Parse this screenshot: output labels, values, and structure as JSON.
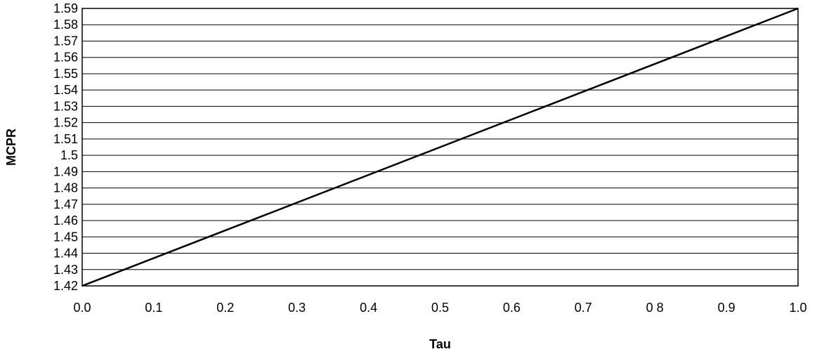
{
  "chart_data": {
    "type": "line",
    "title": "",
    "xlabel": "Tau",
    "ylabel": "MCPR",
    "xlim": [
      0.0,
      1.0
    ],
    "ylim": [
      1.42,
      1.59
    ],
    "x_ticks": [
      0.0,
      0.1,
      0.2,
      0.3,
      0.4,
      0.5,
      0.6,
      0.7,
      0.8,
      0.9,
      1.0
    ],
    "x_tick_labels": [
      "0.0",
      "0.1",
      "0.2",
      "0.3",
      "0.4",
      "0.5",
      "0.6",
      "0.7",
      "0 8",
      "0.9",
      "1.0"
    ],
    "y_ticks": [
      1.42,
      1.43,
      1.44,
      1.45,
      1.46,
      1.47,
      1.48,
      1.49,
      1.5,
      1.51,
      1.52,
      1.53,
      1.54,
      1.55,
      1.56,
      1.57,
      1.58,
      1.59
    ],
    "y_tick_labels": [
      "1.42",
      "1.43",
      "1.44",
      "1.45",
      "1.46",
      "1.47",
      "1.48",
      "1.49",
      "1.5",
      "1.51",
      "1.52",
      "1.53",
      "1.54",
      "1.55",
      "1.56",
      "1.57",
      "1.58",
      "1.59"
    ],
    "grid": "horizontal",
    "legend": "none",
    "series": [
      {
        "x": [
          0.0,
          1.0
        ],
        "y": [
          1.42,
          1.59
        ]
      }
    ]
  }
}
